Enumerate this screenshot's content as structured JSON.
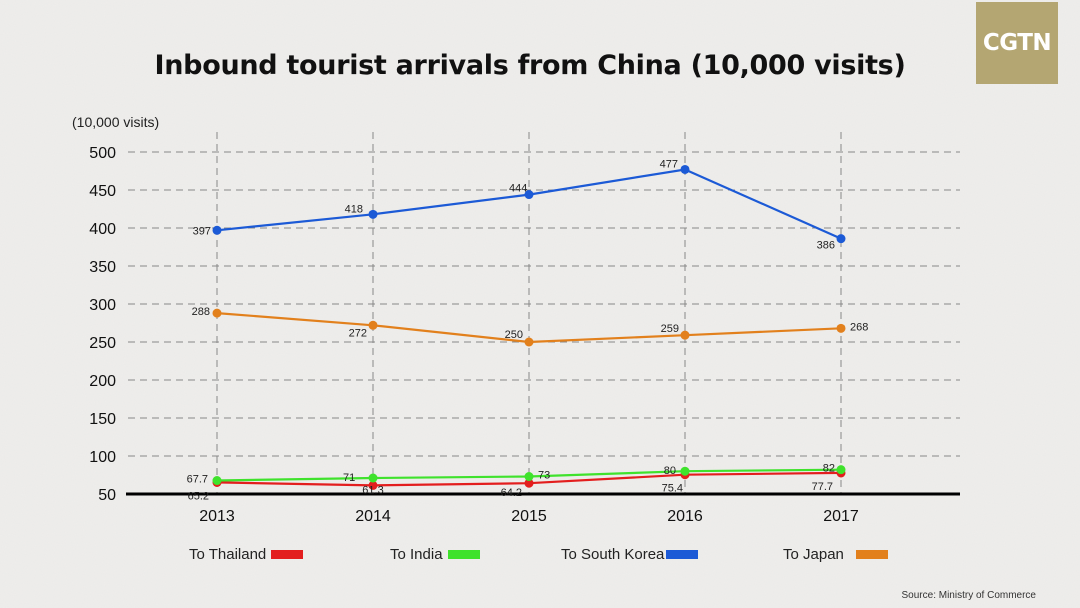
{
  "logo_text": "CGTN",
  "title": "Inbound tourist arrivals from China (10,000 visits)",
  "unit_label": "(10,000 visits)",
  "source": "Source: Ministry of Commerce",
  "chart_data": {
    "type": "line",
    "title": "Inbound tourist arrivals from China (10,000 visits)",
    "ylabel": "(10,000 visits)",
    "x": [
      "2013",
      "2014",
      "2015",
      "2016",
      "2017"
    ],
    "ylim": [
      50,
      500
    ],
    "yticks": [
      50,
      100,
      150,
      200,
      250,
      300,
      350,
      400,
      450,
      500
    ],
    "grid": true,
    "legend_position": "bottom",
    "series": [
      {
        "name": "To Thailand",
        "color": "#e31e1e",
        "values": [
          65.2,
          61.3,
          64.2,
          75.4,
          77.7
        ],
        "labels": [
          "65.2",
          "61.3",
          "64.2",
          "75.4",
          "77.7"
        ]
      },
      {
        "name": "To India",
        "color": "#3fe22c",
        "values": [
          67.7,
          71,
          73,
          80,
          82
        ],
        "labels": [
          "67.7",
          "71",
          "73",
          "80",
          "82"
        ]
      },
      {
        "name": "To South Korea",
        "color": "#1c5ad6",
        "values": [
          397,
          418,
          444,
          477,
          386
        ],
        "labels": [
          "397",
          "418",
          "444",
          "477",
          "386"
        ]
      },
      {
        "name": "To Japan",
        "color": "#e2801c",
        "values": [
          288,
          272,
          250,
          259,
          268
        ],
        "labels": [
          "288",
          "272",
          "250",
          "259",
          "268"
        ]
      }
    ]
  }
}
